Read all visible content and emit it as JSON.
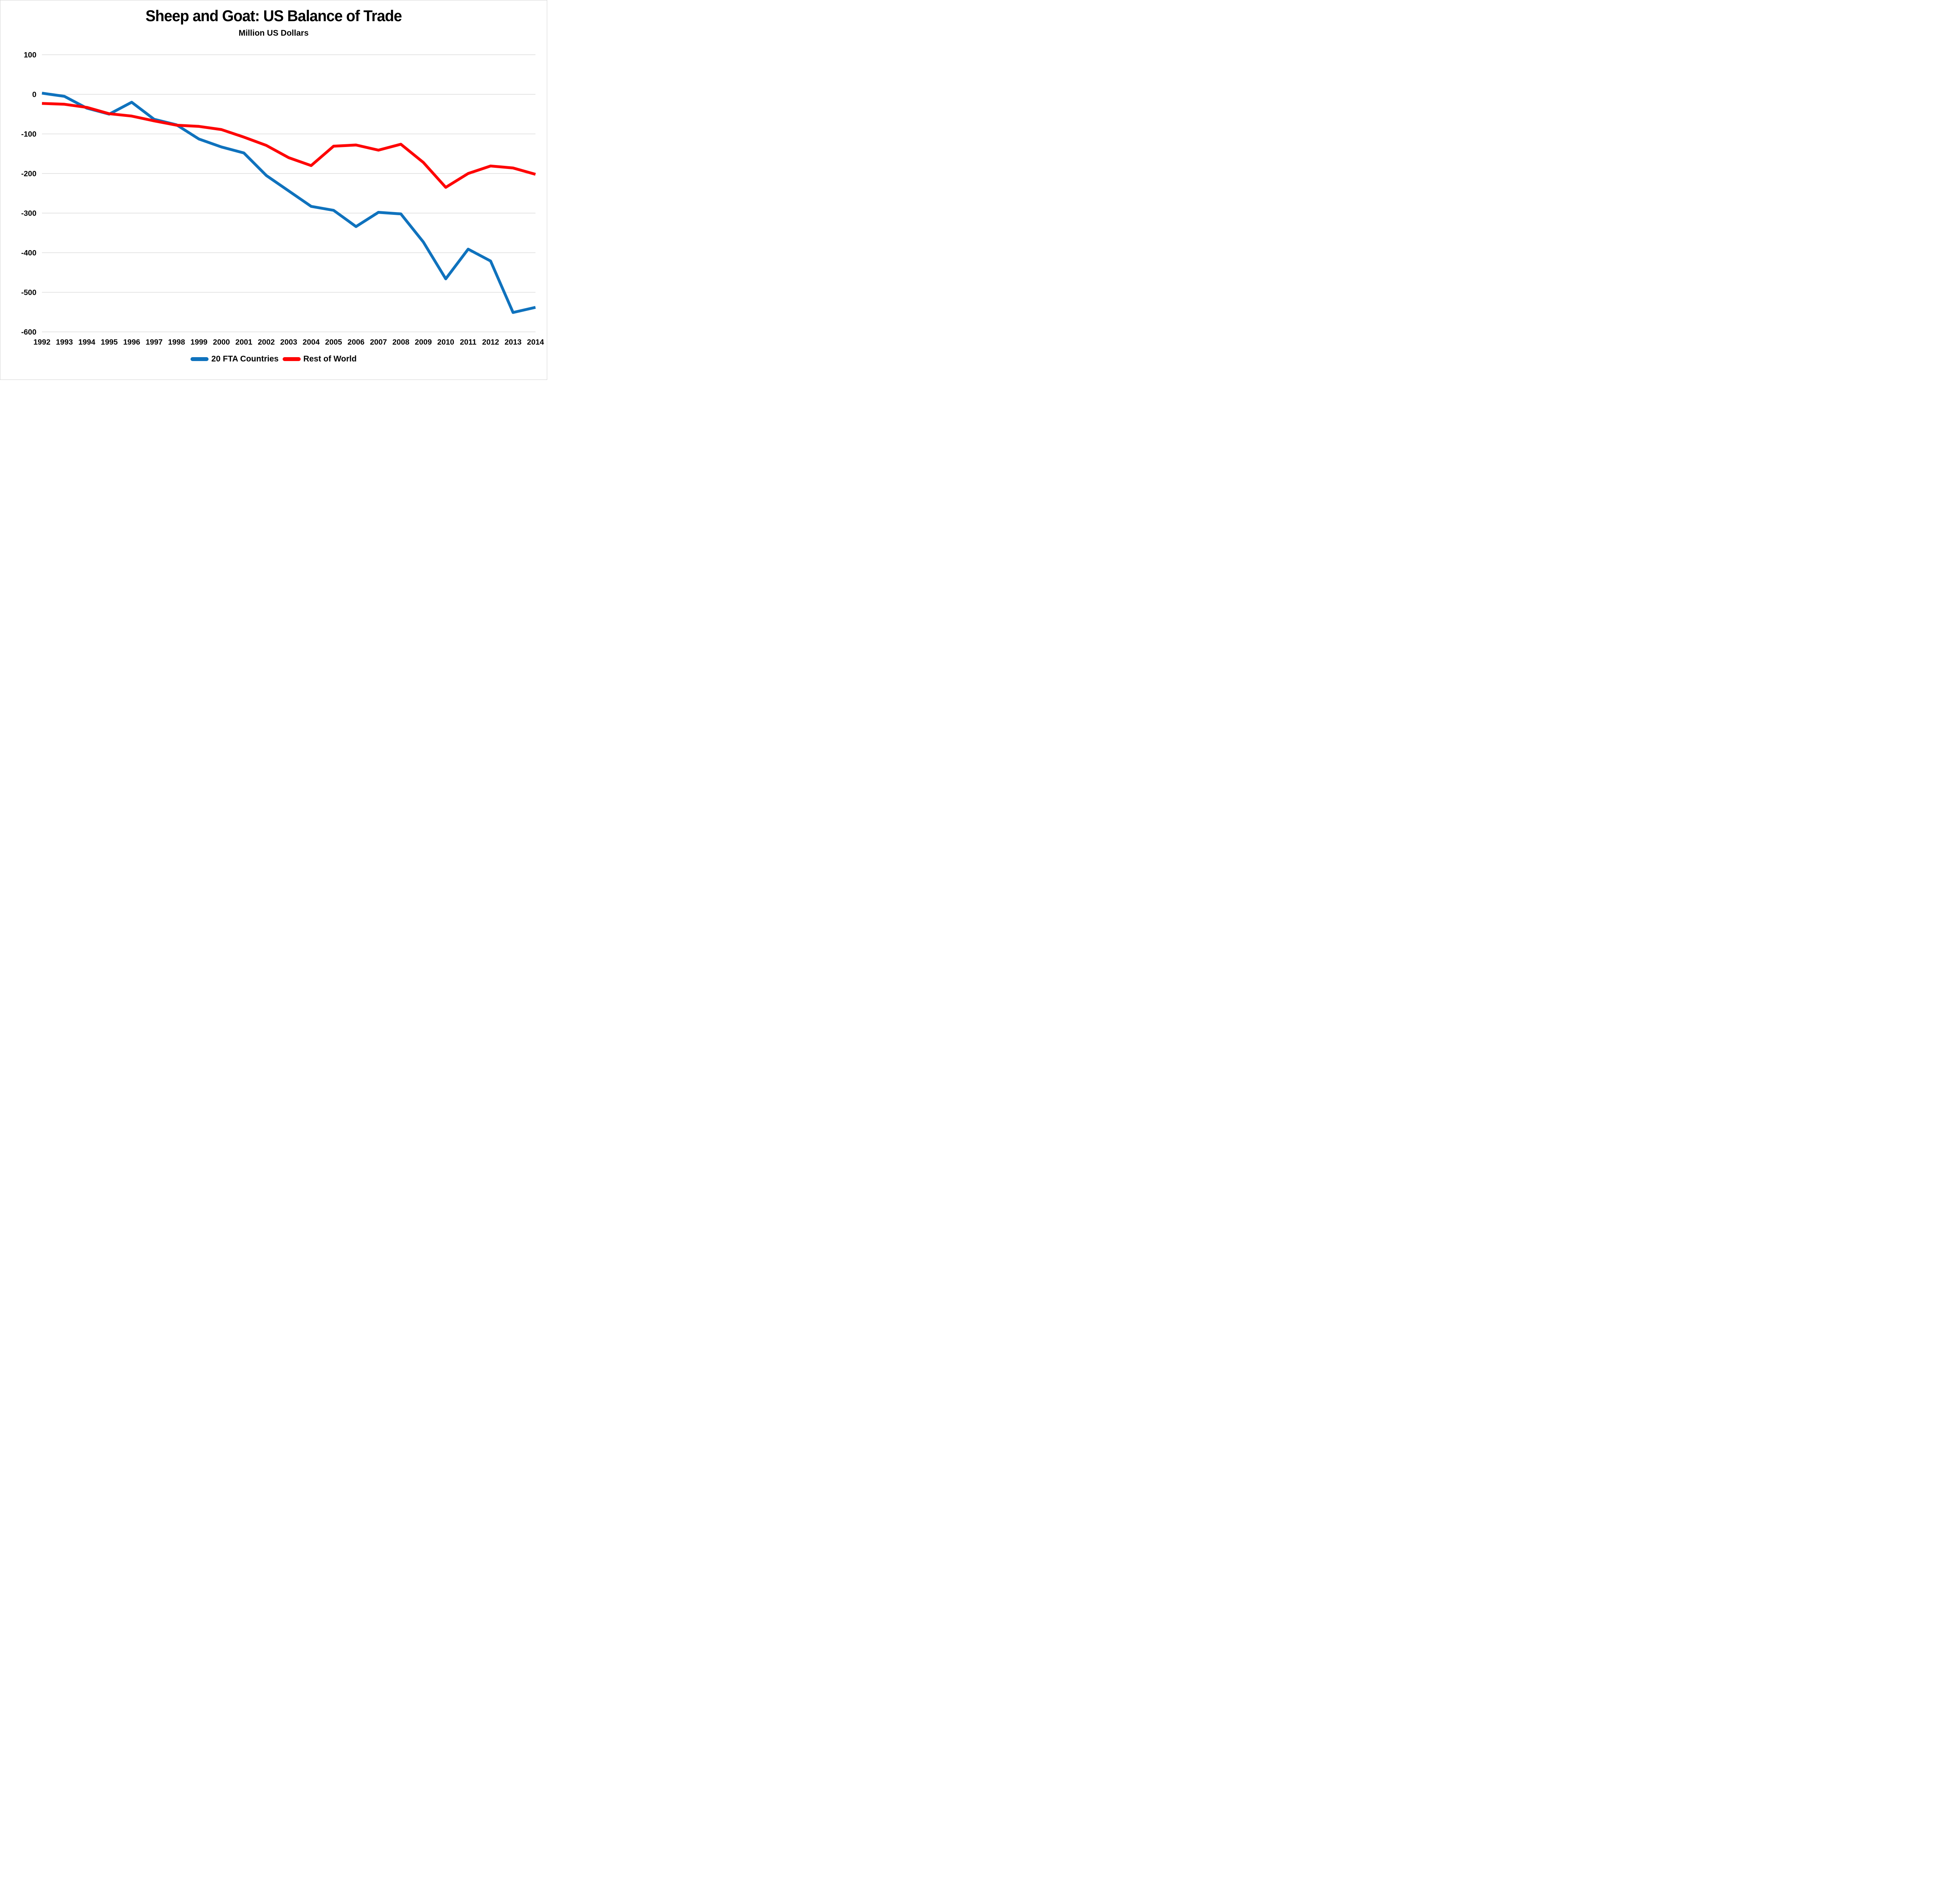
{
  "page": {
    "background": "#ffffff",
    "border_color": "#d4d4d4"
  },
  "chart": {
    "title": "Sheep and Goat: US Balance of Trade",
    "subtitle": "Million US Dollars"
  },
  "chart_data": {
    "type": "line",
    "title": "Sheep and Goat: US Balance of Trade",
    "subtitle": "Million US Dollars",
    "xlabel": "",
    "ylabel": "Million US Dollars",
    "x": [
      1992,
      1993,
      1994,
      1995,
      1996,
      1997,
      1998,
      1999,
      2000,
      2001,
      2002,
      2003,
      2004,
      2005,
      2006,
      2007,
      2008,
      2009,
      2010,
      2011,
      2012,
      2013,
      2014
    ],
    "series": [
      {
        "name": "20 FTA Countries",
        "color": "#0F72BD",
        "values": [
          3,
          -5,
          -35,
          -50,
          -20,
          -63,
          -77,
          -113,
          -133,
          -148,
          -205,
          -244,
          -283,
          -293,
          -334,
          -298,
          -302,
          -373,
          -466,
          -391,
          -421,
          -551,
          -538
        ]
      },
      {
        "name": "Rest of World",
        "color": "#FE0404",
        "values": [
          -23,
          -25,
          -33,
          -49,
          -55,
          -67,
          -78,
          -81,
          -89,
          -108,
          -129,
          -160,
          -180,
          -131,
          -128,
          -141,
          -126,
          -172,
          -235,
          -200,
          -181,
          -186,
          -202
        ]
      }
    ],
    "ylim": [
      -600,
      100
    ],
    "yticks": [
      100,
      0,
      -100,
      -200,
      -300,
      -400,
      -500,
      -600
    ],
    "grid": "horizontal-only",
    "gridline_color": "#D9D9D9",
    "tick_label_color": "#000000",
    "legend_position": "bottom"
  }
}
